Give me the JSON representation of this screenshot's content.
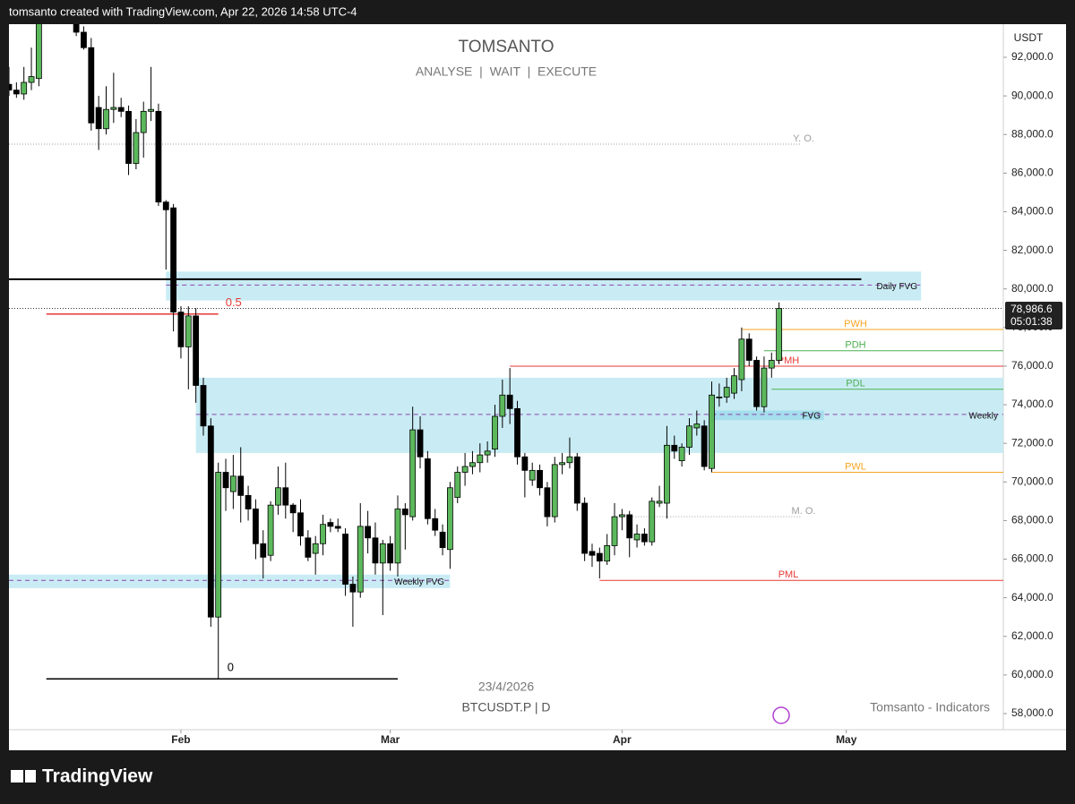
{
  "header": "tomsanto created with TradingView.com, Apr 22, 2026 14:58 UTC-4",
  "brand": "TradingView",
  "chart_data": {
    "type": "candlestick",
    "title": "TOMSANTO",
    "subtitle": "ANALYSE  |  WAIT  |  EXECUTE",
    "watermark_date": "23/4/2026",
    "symbol": "BTCUSDT.P | D",
    "indicator": "Tomsanto - Indicators",
    "currency": "USDT",
    "last_price_label": "78,986.6",
    "countdown": "05:01:38",
    "up_color": "#5cb85c",
    "down_color": "#000000",
    "x": [
      "2026-01-09",
      "2026-01-10",
      "2026-01-11",
      "2026-01-12",
      "2026-01-13",
      "2026-01-14",
      "2026-01-15",
      "2026-01-16",
      "2026-01-17",
      "2026-01-18",
      "2026-01-19",
      "2026-01-20",
      "2026-01-21",
      "2026-01-22",
      "2026-01-23",
      "2026-01-24",
      "2026-01-25",
      "2026-01-26",
      "2026-01-27",
      "2026-01-28",
      "2026-01-29",
      "2026-01-30",
      "2026-01-31",
      "2026-02-01",
      "2026-02-02",
      "2026-02-03",
      "2026-02-04",
      "2026-02-05",
      "2026-02-06",
      "2026-02-07",
      "2026-02-08",
      "2026-02-09",
      "2026-02-10",
      "2026-02-11",
      "2026-02-12",
      "2026-02-13",
      "2026-02-14",
      "2026-02-15",
      "2026-02-16",
      "2026-02-17",
      "2026-02-18",
      "2026-02-19",
      "2026-02-20",
      "2026-02-21",
      "2026-02-22",
      "2026-02-23",
      "2026-02-24",
      "2026-02-25",
      "2026-02-26",
      "2026-02-27",
      "2026-02-28",
      "2026-03-01",
      "2026-03-02",
      "2026-03-03",
      "2026-03-04",
      "2026-03-05",
      "2026-03-06",
      "2026-03-07",
      "2026-03-08",
      "2026-03-09",
      "2026-03-10",
      "2026-03-11",
      "2026-03-12",
      "2026-03-13",
      "2026-03-14",
      "2026-03-15",
      "2026-03-16",
      "2026-03-17",
      "2026-03-18",
      "2026-03-19",
      "2026-03-20",
      "2026-03-21",
      "2026-03-22",
      "2026-03-23",
      "2026-03-24",
      "2026-03-25",
      "2026-03-26",
      "2026-03-27",
      "2026-03-28",
      "2026-03-29",
      "2026-03-30",
      "2026-03-31",
      "2026-04-01",
      "2026-04-02",
      "2026-04-03",
      "2026-04-04",
      "2026-04-05",
      "2026-04-06",
      "2026-04-07",
      "2026-04-08",
      "2026-04-09",
      "2026-04-10",
      "2026-04-11",
      "2026-04-12",
      "2026-04-13",
      "2026-04-14",
      "2026-04-15",
      "2026-04-16",
      "2026-04-17",
      "2026-04-18",
      "2026-04-19",
      "2026-04-20",
      "2026-04-21",
      "2026-04-22"
    ],
    "open": [
      90600,
      90300,
      90100,
      90700,
      90900,
      94500,
      96800,
      95500,
      95300,
      95200,
      93300,
      92500,
      89400,
      88300,
      89300,
      89400,
      89200,
      86500,
      88100,
      89200,
      89200,
      84500,
      84200,
      78800,
      77000,
      78600,
      75000,
      72900,
      63000,
      70500,
      69500,
      70300,
      69300,
      68600,
      66800,
      66200,
      68800,
      69700,
      68800,
      68400,
      67100,
      66300,
      66800,
      67900,
      67700,
      67300,
      64700,
      64300,
      67700,
      67100,
      65800,
      66800,
      65800,
      68600,
      68200,
      72700,
      71200,
      68100,
      67400,
      66500,
      69200,
      70500,
      70800,
      71000,
      71400,
      71700,
      73400,
      74500,
      73800,
      71300,
      70100,
      70600,
      69700,
      68200,
      70900,
      71000,
      71300,
      68900,
      66400,
      66300,
      65900,
      66700,
      68200,
      68300,
      67000,
      67300,
      66900,
      68900,
      68900,
      71900,
      71100,
      71800,
      72800,
      72900,
      70700,
      74400,
      74400,
      74600,
      75300,
      77400,
      76300,
      73900,
      75900,
      76300
    ],
    "high": [
      91500,
      90700,
      91500,
      92500,
      95000,
      97200,
      97500,
      96000,
      95600,
      95400,
      93600,
      93000,
      90000,
      90500,
      91200,
      89900,
      89500,
      88800,
      89700,
      91500,
      89600,
      84600,
      84400,
      79100,
      79100,
      79000,
      75400,
      73300,
      71000,
      71200,
      71400,
      71800,
      69800,
      69100,
      67500,
      69000,
      70800,
      71000,
      68900,
      69100,
      67500,
      67200,
      68300,
      68100,
      68100,
      67600,
      65100,
      68900,
      68500,
      67900,
      67000,
      67200,
      69300,
      68900,
      73900,
      73400,
      71600,
      68600,
      67800,
      70000,
      70800,
      71500,
      71600,
      72000,
      72100,
      74000,
      75300,
      75900,
      74200,
      71500,
      71000,
      70900,
      70000,
      71300,
      71500,
      72300,
      71500,
      69200,
      66800,
      66600,
      67300,
      68900,
      68600,
      68500,
      67800,
      67600,
      69200,
      69800,
      72900,
      72400,
      72000,
      73300,
      73700,
      73200,
      75200,
      75100,
      75400,
      75900,
      78000,
      77700,
      76500,
      76500,
      76700,
      79300
    ],
    "low": [
      90000,
      89900,
      89800,
      90300,
      90500,
      94200,
      95100,
      94800,
      94900,
      93100,
      92400,
      88200,
      87200,
      88000,
      88600,
      88900,
      85900,
      86200,
      86800,
      88700,
      84300,
      81000,
      77800,
      76400,
      74800,
      74100,
      72400,
      62500,
      59800,
      68500,
      68600,
      67900,
      68000,
      66000,
      65000,
      65900,
      68300,
      68100,
      67400,
      66700,
      65900,
      65200,
      66200,
      67400,
      67400,
      64100,
      62500,
      64000,
      66300,
      65200,
      63100,
      65400,
      65100,
      66500,
      68000,
      70700,
      67800,
      67200,
      66200,
      65500,
      68900,
      69800,
      70400,
      70500,
      71000,
      71300,
      72800,
      73000,
      70900,
      69200,
      69800,
      69300,
      67700,
      67900,
      70400,
      70700,
      68500,
      65900,
      65600,
      65000,
      65700,
      66200,
      67500,
      66100,
      66600,
      66700,
      66700,
      68700,
      68100,
      71200,
      70800,
      71400,
      72400,
      70600,
      70500,
      73900,
      74100,
      74300,
      74700,
      76000,
      73700,
      73600,
      75400,
      76100
    ],
    "close": [
      90300,
      90100,
      90700,
      91000,
      94500,
      96800,
      95500,
      95300,
      95200,
      93300,
      92500,
      88600,
      88300,
      89300,
      89400,
      89200,
      86500,
      88100,
      89200,
      89300,
      84500,
      84100,
      78800,
      77000,
      78600,
      75000,
      72900,
      63000,
      70500,
      69700,
      70300,
      69300,
      68600,
      66800,
      66100,
      68800,
      69700,
      68800,
      68400,
      67200,
      66100,
      66800,
      67800,
      67700,
      67600,
      64700,
      64300,
      67700,
      67100,
      65800,
      66800,
      65800,
      68600,
      68300,
      72700,
      71300,
      68100,
      67500,
      66600,
      69700,
      70500,
      70800,
      71000,
      71400,
      71600,
      73400,
      74500,
      73800,
      71300,
      70600,
      70600,
      69700,
      68200,
      70900,
      71000,
      71300,
      68900,
      66300,
      66200,
      65900,
      66700,
      68200,
      68300,
      67100,
      67300,
      66900,
      69000,
      69000,
      71900,
      71600,
      71800,
      72900,
      73000,
      70800,
      74500,
      74400,
      74900,
      75500,
      77400,
      76300,
      73900,
      75900,
      76300,
      78986.6
    ],
    "xlim": [
      "2026-01-09",
      "2026-05-22"
    ],
    "xticks": [
      {
        "value": "2026-02-01",
        "label": "Feb"
      },
      {
        "value": "2026-03-01",
        "label": "Mar"
      },
      {
        "value": "2026-04-01",
        "label": "Apr"
      },
      {
        "value": "2026-05-01",
        "label": "May"
      }
    ],
    "ylim": [
      57165,
      93716
    ],
    "yticks": [
      {
        "value": 58000,
        "label": "58,000.0"
      },
      {
        "value": 60000,
        "label": "60,000.0"
      },
      {
        "value": 62000,
        "label": "62,000.0"
      },
      {
        "value": 64000,
        "label": "64,000.0"
      },
      {
        "value": 66000,
        "label": "66,000.0"
      },
      {
        "value": 68000,
        "label": "68,000.0"
      },
      {
        "value": 70000,
        "label": "70,000.0"
      },
      {
        "value": 72000,
        "label": "72,000.0"
      },
      {
        "value": 74000,
        "label": "74,000.0"
      },
      {
        "value": 76000,
        "label": "76,000.0"
      },
      {
        "value": 78000,
        "label": "78,000.0"
      },
      {
        "value": 80000,
        "label": "80,000.0"
      },
      {
        "value": 82000,
        "label": "82,000.0"
      },
      {
        "value": 84000,
        "label": "84,000.0"
      },
      {
        "value": 86000,
        "label": "86,000.0"
      },
      {
        "value": 88000,
        "label": "88,000.0"
      },
      {
        "value": 90000,
        "label": "90,000.0"
      },
      {
        "value": 92000,
        "label": "92,000.0"
      }
    ],
    "zones": [
      {
        "label": "Daily FVG",
        "low": 79400,
        "high": 80900,
        "mid": 80200,
        "from": "2026-01-30",
        "to": "2026-05-11",
        "color": "#bfe9f2"
      },
      {
        "label": "Weekly",
        "low": 71500,
        "high": 75400,
        "mid": 73500,
        "from": "2026-02-03",
        "to": "2026-05-22",
        "color": "#bfe9f2"
      },
      {
        "label": "FVG",
        "low": 73200,
        "high": 73700,
        "mid": 73500,
        "from": "2026-04-13",
        "to": "2026-04-28",
        "color": "#9fdcea"
      },
      {
        "label": "Weekly FVG",
        "low": 64500,
        "high": 65200,
        "mid": 64900,
        "from": "2026-01-09",
        "to": "2026-03-09",
        "color": "#bfe9f2"
      }
    ],
    "levels": [
      {
        "label": "Y. O.",
        "value": 87500,
        "color": "#9e9e9e",
        "from": "2026-01-09",
        "to": "2026-04-25"
      },
      {
        "label": "PWH",
        "value": 77900,
        "color": "#f5a623",
        "from": "2026-04-17",
        "to": "2026-05-22"
      },
      {
        "label": "PDH",
        "value": 76800,
        "color": "#4caf50",
        "from": "2026-04-20",
        "to": "2026-05-22"
      },
      {
        "label": "PMH",
        "value": 76000,
        "color": "#e53935",
        "from": "2026-03-17",
        "to": "2026-05-22"
      },
      {
        "label": "PDL",
        "value": 74800,
        "color": "#4caf50",
        "from": "2026-04-21",
        "to": "2026-05-22"
      },
      {
        "label": "PWL",
        "value": 70500,
        "color": "#f5a623",
        "from": "2026-04-13",
        "to": "2026-05-22"
      },
      {
        "label": "M. O.",
        "value": 68200,
        "color": "#9e9e9e",
        "from": "2026-04-01",
        "to": "2026-04-25"
      },
      {
        "label": "PML",
        "value": 64900,
        "color": "#e53935",
        "from": "2026-03-29",
        "to": "2026-05-22"
      },
      {
        "value": 80500,
        "color": "#000000",
        "from": "2026-01-09",
        "to": "2026-05-03"
      }
    ],
    "fib": [
      {
        "label": "0.5",
        "value": 78700,
        "color": "#e53935",
        "from": "2026-01-14",
        "to": "2026-02-06"
      },
      {
        "label": "0",
        "value": 59800,
        "color": "#000000",
        "from": "2026-01-14",
        "to": "2026-03-02"
      }
    ]
  }
}
